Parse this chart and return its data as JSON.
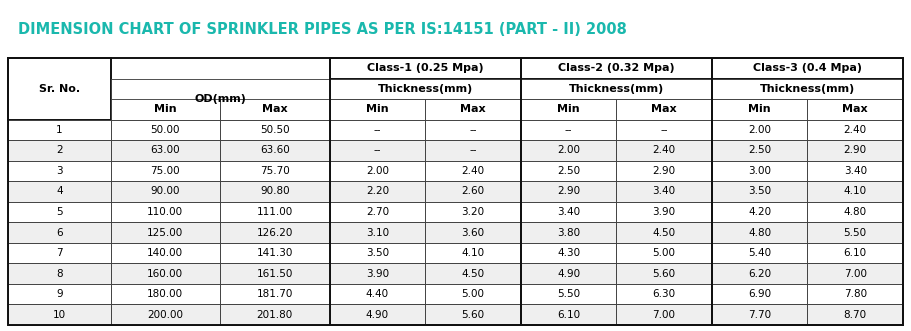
{
  "title": "DIMENSION CHART OF SPRINKLER PIPES AS PER IS:14151 (PART - II) 2008",
  "title_color": "#1ab8ad",
  "title_fontsize": 10.5,
  "class_headers": [
    "Class-1 (0.25 Mpa)",
    "Class-2 (0.32 Mpa)",
    "Class-3 (0.4 Mpa)"
  ],
  "od_header": "OD(mm)",
  "sr_no_header": "Sr. No.",
  "rows": [
    {
      "sr": "1",
      "od_min": "50.00",
      "od_max": "50.50",
      "c1_min": "--",
      "c1_max": "--",
      "c2_min": "--",
      "c2_max": "--",
      "c3_min": "2.00",
      "c3_max": "2.40"
    },
    {
      "sr": "2",
      "od_min": "63.00",
      "od_max": "63.60",
      "c1_min": "--",
      "c1_max": "--",
      "c2_min": "2.00",
      "c2_max": "2.40",
      "c3_min": "2.50",
      "c3_max": "2.90"
    },
    {
      "sr": "3",
      "od_min": "75.00",
      "od_max": "75.70",
      "c1_min": "2.00",
      "c1_max": "2.40",
      "c2_min": "2.50",
      "c2_max": "2.90",
      "c3_min": "3.00",
      "c3_max": "3.40"
    },
    {
      "sr": "4",
      "od_min": "90.00",
      "od_max": "90.80",
      "c1_min": "2.20",
      "c1_max": "2.60",
      "c2_min": "2.90",
      "c2_max": "3.40",
      "c3_min": "3.50",
      "c3_max": "4.10"
    },
    {
      "sr": "5",
      "od_min": "110.00",
      "od_max": "111.00",
      "c1_min": "2.70",
      "c1_max": "3.20",
      "c2_min": "3.40",
      "c2_max": "3.90",
      "c3_min": "4.20",
      "c3_max": "4.80"
    },
    {
      "sr": "6",
      "od_min": "125.00",
      "od_max": "126.20",
      "c1_min": "3.10",
      "c1_max": "3.60",
      "c2_min": "3.80",
      "c2_max": "4.50",
      "c3_min": "4.80",
      "c3_max": "5.50"
    },
    {
      "sr": "7",
      "od_min": "140.00",
      "od_max": "141.30",
      "c1_min": "3.50",
      "c1_max": "4.10",
      "c2_min": "4.30",
      "c2_max": "5.00",
      "c3_min": "5.40",
      "c3_max": "6.10"
    },
    {
      "sr": "8",
      "od_min": "160.00",
      "od_max": "161.50",
      "c1_min": "3.90",
      "c1_max": "4.50",
      "c2_min": "4.90",
      "c2_max": "5.60",
      "c3_min": "6.20",
      "c3_max": "7.00"
    },
    {
      "sr": "9",
      "od_min": "180.00",
      "od_max": "181.70",
      "c1_min": "4.40",
      "c1_max": "5.00",
      "c2_min": "5.50",
      "c2_max": "6.30",
      "c3_min": "6.90",
      "c3_max": "7.80"
    },
    {
      "sr": "10",
      "od_min": "200.00",
      "od_max": "201.80",
      "c1_min": "4.90",
      "c1_max": "5.60",
      "c2_min": "6.10",
      "c2_max": "7.00",
      "c3_min": "7.70",
      "c3_max": "8.70"
    }
  ],
  "border_color": "#333333",
  "thick_border_color": "#111111",
  "row_colors": [
    "#ffffff",
    "#efefef"
  ],
  "header_bg": "#ffffff",
  "data_fontsize": 7.5,
  "header_fontsize": 8.0,
  "fig_width": 9.11,
  "fig_height": 3.31,
  "dpi": 100
}
